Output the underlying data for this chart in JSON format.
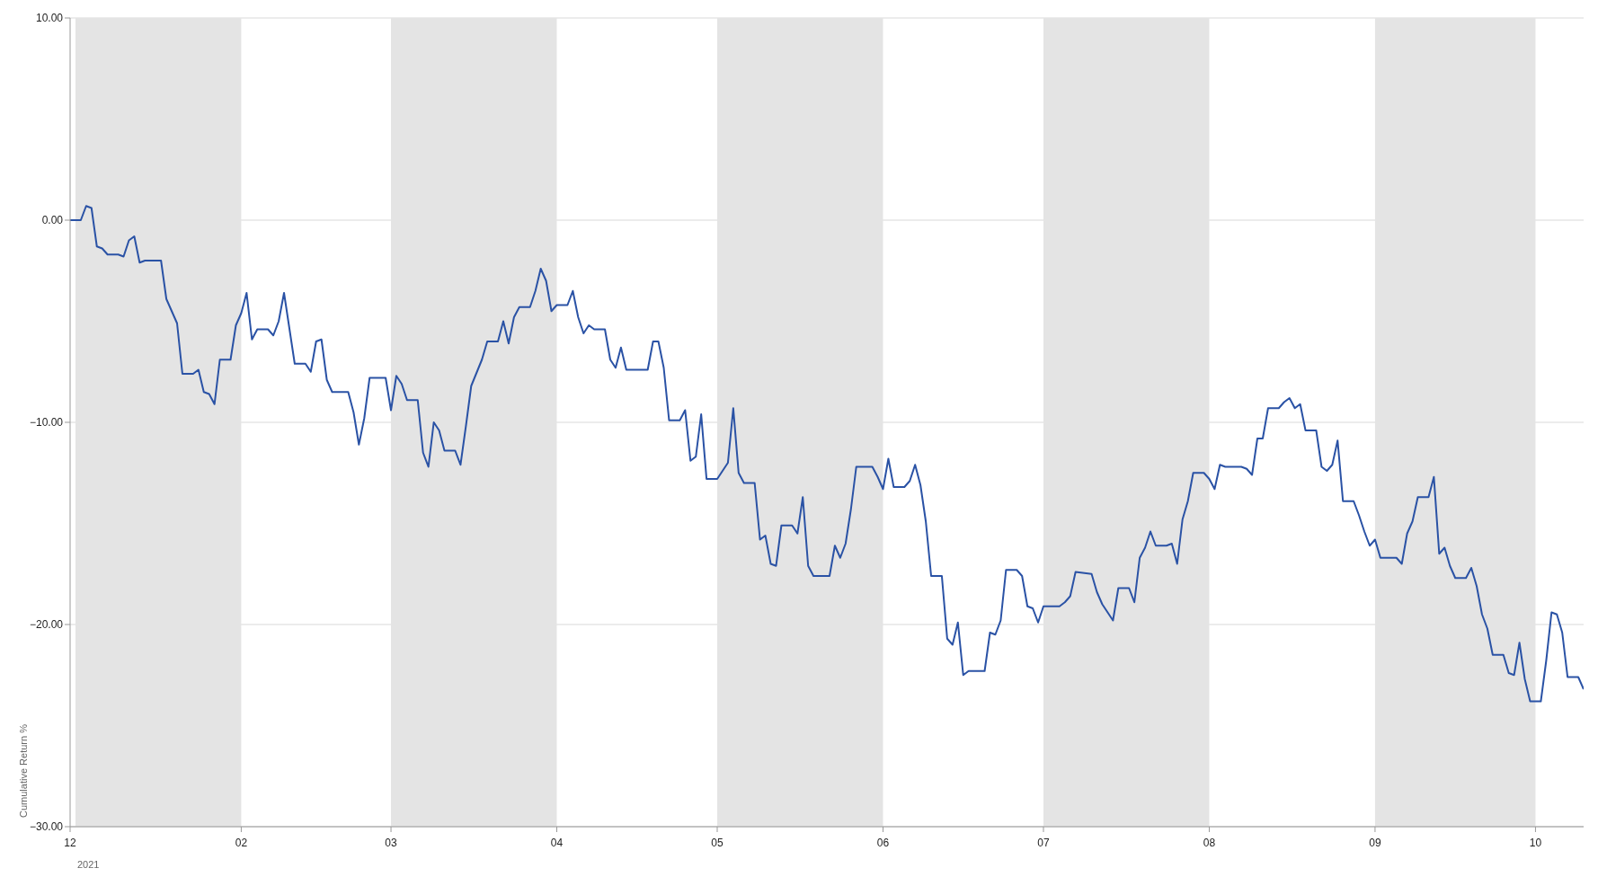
{
  "chart_data": {
    "type": "line",
    "ylabel": "Cumulative Return %",
    "x": [
      "2020-12-31",
      "2021-01-02",
      "2021-01-03",
      "2021-01-04",
      "2021-01-05",
      "2021-01-06",
      "2021-01-07",
      "2021-01-09",
      "2021-01-10",
      "2021-01-11",
      "2021-01-12",
      "2021-01-13",
      "2021-01-14",
      "2021-01-17",
      "2021-01-18",
      "2021-01-20",
      "2021-01-21",
      "2021-01-23",
      "2021-01-24",
      "2021-01-25",
      "2021-01-26",
      "2021-01-27",
      "2021-01-28",
      "2021-01-30",
      "2021-01-31",
      "2021-02-01",
      "2021-02-02",
      "2021-02-03",
      "2021-02-04",
      "2021-02-06",
      "2021-02-07",
      "2021-02-08",
      "2021-02-09",
      "2021-02-11",
      "2021-02-13",
      "2021-02-14",
      "2021-02-15",
      "2021-02-16",
      "2021-02-17",
      "2021-02-18",
      "2021-02-21",
      "2021-02-22",
      "2021-02-23",
      "2021-02-24",
      "2021-02-25",
      "2021-02-28",
      "2021-03-01",
      "2021-03-02",
      "2021-03-03",
      "2021-03-04",
      "2021-03-06",
      "2021-03-07",
      "2021-03-08",
      "2021-03-09",
      "2021-03-10",
      "2021-03-11",
      "2021-03-13",
      "2021-03-14",
      "2021-03-15",
      "2021-03-16",
      "2021-03-18",
      "2021-03-19",
      "2021-03-21",
      "2021-03-22",
      "2021-03-23",
      "2021-03-24",
      "2021-03-25",
      "2021-03-27",
      "2021-03-28",
      "2021-03-29",
      "2021-03-30",
      "2021-03-31",
      "2021-04-01",
      "2021-04-03",
      "2021-04-04",
      "2021-04-05",
      "2021-04-06",
      "2021-04-07",
      "2021-04-08",
      "2021-04-10",
      "2021-04-11",
      "2021-04-12",
      "2021-04-13",
      "2021-04-14",
      "2021-04-18",
      "2021-04-19",
      "2021-04-20",
      "2021-04-21",
      "2021-04-22",
      "2021-04-24",
      "2021-04-25",
      "2021-04-26",
      "2021-04-27",
      "2021-04-28",
      "2021-04-29",
      "2021-05-01",
      "2021-05-03",
      "2021-05-04",
      "2021-05-05",
      "2021-05-06",
      "2021-05-08",
      "2021-05-09",
      "2021-05-10",
      "2021-05-11",
      "2021-05-12",
      "2021-05-13",
      "2021-05-15",
      "2021-05-16",
      "2021-05-17",
      "2021-05-18",
      "2021-05-19",
      "2021-05-22",
      "2021-05-23",
      "2021-05-24",
      "2021-05-25",
      "2021-05-26",
      "2021-05-27",
      "2021-05-30",
      "2021-05-31",
      "2021-06-01",
      "2021-06-02",
      "2021-06-03",
      "2021-06-05",
      "2021-06-06",
      "2021-06-07",
      "2021-06-08",
      "2021-06-09",
      "2021-06-10",
      "2021-06-12",
      "2021-06-13",
      "2021-06-14",
      "2021-06-15",
      "2021-06-16",
      "2021-06-17",
      "2021-06-20",
      "2021-06-21",
      "2021-06-22",
      "2021-06-23",
      "2021-06-24",
      "2021-06-26",
      "2021-06-27",
      "2021-06-28",
      "2021-06-29",
      "2021-06-30",
      "2021-07-01",
      "2021-07-04",
      "2021-07-05",
      "2021-07-06",
      "2021-07-07",
      "2021-07-10",
      "2021-07-11",
      "2021-07-12",
      "2021-07-14",
      "2021-07-15",
      "2021-07-17",
      "2021-07-18",
      "2021-07-19",
      "2021-07-20",
      "2021-07-21",
      "2021-07-22",
      "2021-07-24",
      "2021-07-25",
      "2021-07-26",
      "2021-07-27",
      "2021-07-28",
      "2021-07-29",
      "2021-07-31",
      "2021-08-01",
      "2021-08-02",
      "2021-08-03",
      "2021-08-04",
      "2021-08-05",
      "2021-08-07",
      "2021-08-08",
      "2021-08-09",
      "2021-08-10",
      "2021-08-11",
      "2021-08-12",
      "2021-08-14",
      "2021-08-15",
      "2021-08-16",
      "2021-08-17",
      "2021-08-18",
      "2021-08-19",
      "2021-08-21",
      "2021-08-22",
      "2021-08-23",
      "2021-08-24",
      "2021-08-25",
      "2021-08-26",
      "2021-08-28",
      "2021-08-29",
      "2021-08-30",
      "2021-08-31",
      "2021-09-01",
      "2021-09-02",
      "2021-09-05",
      "2021-09-06",
      "2021-09-07",
      "2021-09-08",
      "2021-09-09",
      "2021-09-11",
      "2021-09-12",
      "2021-09-13",
      "2021-09-14",
      "2021-09-15",
      "2021-09-16",
      "2021-09-18",
      "2021-09-19",
      "2021-09-20",
      "2021-09-21",
      "2021-09-22",
      "2021-09-23",
      "2021-09-25",
      "2021-09-26",
      "2021-09-27",
      "2021-09-28",
      "2021-09-29",
      "2021-09-30",
      "2021-10-02",
      "2021-10-03",
      "2021-10-04",
      "2021-10-05",
      "2021-10-06",
      "2021-10-07",
      "2021-10-09",
      "2021-10-10"
    ],
    "series": [
      {
        "color": "#2a52a5",
        "values": [
          0,
          0,
          0.7,
          0.6,
          -1.3,
          -1.4,
          -1.7,
          -1.7,
          -1.8,
          -1.0,
          -0.8,
          -2.1,
          -2.0,
          -2.0,
          -3.9,
          -5.1,
          -7.6,
          -7.6,
          -7.4,
          -8.5,
          -8.6,
          -9.1,
          -6.9,
          -6.9,
          -5.2,
          -4.6,
          -3.6,
          -5.9,
          -5.4,
          -5.4,
          -5.7,
          -5.0,
          -3.6,
          -7.1,
          -7.1,
          -7.5,
          -6.0,
          -5.9,
          -7.9,
          -8.5,
          -8.5,
          -9.5,
          -11.1,
          -9.8,
          -7.8,
          -7.8,
          -9.4,
          -7.7,
          -8.1,
          -8.9,
          -8.9,
          -11.5,
          -12.2,
          -10.0,
          -10.4,
          -11.4,
          -11.4,
          -12.1,
          -10.2,
          -8.2,
          -6.9,
          -6.0,
          -6.0,
          -5.0,
          -6.1,
          -4.8,
          -4.3,
          -4.3,
          -3.5,
          -2.4,
          -3.0,
          -4.5,
          -4.2,
          -4.2,
          -3.5,
          -4.8,
          -5.6,
          -5.2,
          -5.4,
          -5.4,
          -6.9,
          -7.3,
          -6.3,
          -7.4,
          -7.4,
          -6.0,
          -6.0,
          -7.3,
          -9.9,
          -9.9,
          -9.4,
          -11.9,
          -11.7,
          -9.6,
          -12.8,
          -12.8,
          -12.0,
          -9.3,
          -12.5,
          -13.0,
          -13.0,
          -15.8,
          -15.6,
          -17.0,
          -17.1,
          -15.1,
          -15.1,
          -15.5,
          -13.7,
          -17.1,
          -17.6,
          -17.6,
          -16.1,
          -16.7,
          -16.0,
          -14.3,
          -12.2,
          -12.2,
          -12.7,
          -13.3,
          -11.8,
          -13.2,
          -13.2,
          -12.9,
          -12.1,
          -13.1,
          -14.9,
          -17.6,
          -17.6,
          -20.7,
          -21.0,
          -19.9,
          -22.5,
          -22.3,
          -22.3,
          -20.4,
          -20.5,
          -19.8,
          -17.3,
          -17.3,
          -17.6,
          -19.1,
          -19.2,
          -19.9,
          -19.1,
          -19.1,
          -18.9,
          -18.6,
          -17.4,
          -17.5,
          -18.4,
          -19.0,
          -19.8,
          -18.2,
          -18.2,
          -18.9,
          -16.7,
          -16.2,
          -15.4,
          -16.1,
          -16.1,
          -16.0,
          -17.0,
          -14.8,
          -13.9,
          -12.5,
          -12.5,
          -12.8,
          -13.3,
          -12.1,
          -12.2,
          -12.2,
          -12.2,
          -12.3,
          -12.6,
          -10.8,
          -10.8,
          -9.3,
          -9.3,
          -9.0,
          -8.8,
          -9.3,
          -9.1,
          -10.4,
          -10.4,
          -12.2,
          -12.4,
          -12.1,
          -10.9,
          -13.9,
          -13.9,
          -14.6,
          -15.4,
          -16.1,
          -15.8,
          -16.7,
          -16.7,
          -17.0,
          -15.5,
          -14.9,
          -13.7,
          -13.7,
          -12.7,
          -16.5,
          -16.2,
          -17.1,
          -17.7,
          -17.7,
          -17.2,
          -18.1,
          -19.5,
          -20.2,
          -21.5,
          -21.5,
          -22.4,
          -22.5,
          -20.9,
          -22.7,
          -23.8,
          -23.8,
          -21.8,
          -19.4,
          -19.5,
          -20.4,
          -22.6,
          -22.6,
          -23.2
        ]
      }
    ],
    "xlim": [
      "2020-12-31",
      "2021-10-10"
    ],
    "xticks": [
      {
        "value": "2020-12-31",
        "label": "12"
      },
      {
        "value": "2021-02-01",
        "label": "02"
      },
      {
        "value": "2021-03-01",
        "label": "03"
      },
      {
        "value": "2021-04-01",
        "label": "04"
      },
      {
        "value": "2021-05-01",
        "label": "05"
      },
      {
        "value": "2021-06-01",
        "label": "06"
      },
      {
        "value": "2021-07-01",
        "label": "07"
      },
      {
        "value": "2021-08-01",
        "label": "08"
      },
      {
        "value": "2021-09-01",
        "label": "09"
      },
      {
        "value": "2021-10-01",
        "label": "10"
      }
    ],
    "ylim": [
      -30,
      10
    ],
    "yticks": [
      {
        "value": -30,
        "label": "−30.00"
      },
      {
        "value": -20,
        "label": "−20.00"
      },
      {
        "value": -10,
        "label": "−10.00"
      },
      {
        "value": 0,
        "label": "0.00"
      },
      {
        "value": 10,
        "label": "10.00"
      }
    ],
    "bands": [
      {
        "axis": "x",
        "from": "2021-01-01",
        "to": "2021-02-01",
        "color": "#e4e4e4"
      },
      {
        "axis": "x",
        "from": "2021-03-01",
        "to": "2021-04-01",
        "color": "#e4e4e4"
      },
      {
        "axis": "x",
        "from": "2021-05-01",
        "to": "2021-06-01",
        "color": "#e4e4e4"
      },
      {
        "axis": "x",
        "from": "2021-07-01",
        "to": "2021-08-01",
        "color": "#e4e4e4"
      },
      {
        "axis": "x",
        "from": "2021-09-01",
        "to": "2021-10-01",
        "color": "#e4e4e4"
      }
    ],
    "annotations": [
      "2021"
    ],
    "grid": "y",
    "legend": false,
    "marker": "none",
    "line_style": "solid"
  }
}
